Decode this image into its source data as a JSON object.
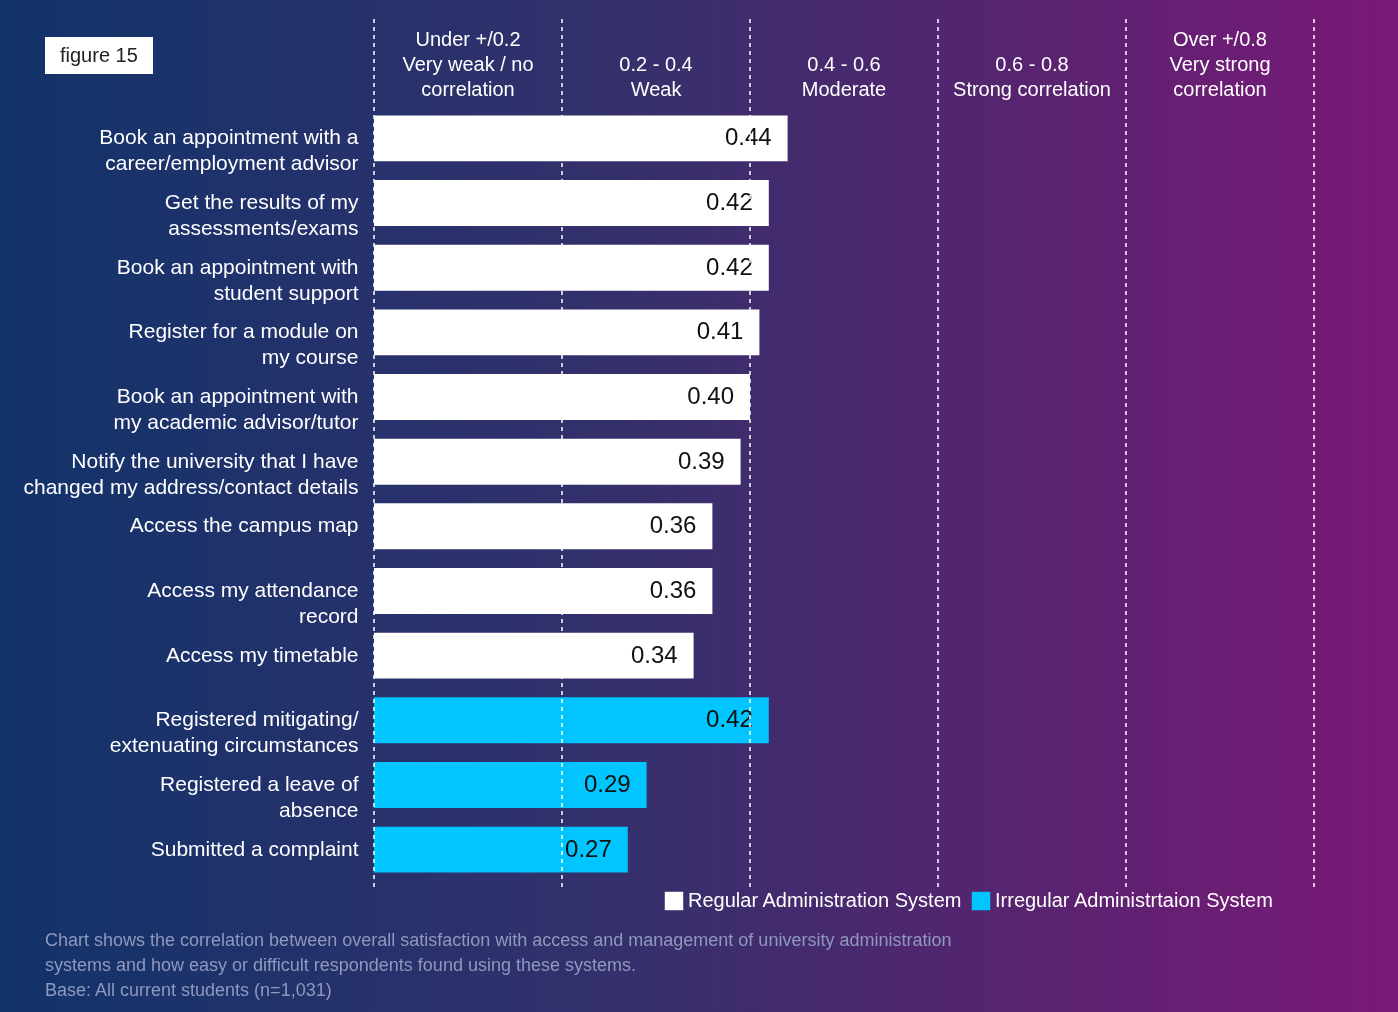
{
  "chart_data": {
    "type": "bar",
    "orientation": "horizontal",
    "title": "figure 15",
    "categories": [
      "Book an appointment with a career/employment advisor",
      "Get the results of my assessments/exams",
      "Book an appointment with student support",
      "Register for a module on my course",
      "Book an appointment with my academic advisor/tutor",
      "Notify the university that I have changed my address/contact details",
      "Access the campus map",
      "Access my attendance record",
      "Access my timetable",
      "Registered mitigating/extenuating circumstances",
      "Registered a leave of absence",
      "Submitted a complaint"
    ],
    "series": [
      {
        "name": "Regular Administration System",
        "color": "#ffffff",
        "values": [
          0.44,
          0.42,
          0.42,
          0.41,
          0.4,
          0.39,
          0.36,
          0.36,
          0.34,
          null,
          null,
          null
        ],
        "value_labels": [
          "0.44",
          "0.42",
          "0.42",
          "0.41",
          "0.40",
          "0.39",
          "0.36",
          "0.36",
          "0.34",
          null,
          null,
          null
        ]
      },
      {
        "name": "Irregular Administrtaion System",
        "color": "#00c5ff",
        "values": [
          null,
          null,
          null,
          null,
          null,
          null,
          null,
          null,
          null,
          0.42,
          0.29,
          0.27
        ],
        "value_labels": [
          null,
          null,
          null,
          null,
          null,
          null,
          null,
          null,
          null,
          "0.42",
          "0.29",
          "0.27"
        ]
      }
    ],
    "xlim": [
      0,
      1
    ],
    "tick_labels": "y",
    "legend": "bottom right",
    "grid": false,
    "ref_lines": [
      {
        "axis": "x",
        "value": 0,
        "color": "#ffffff",
        "line_style": "dashed"
      },
      {
        "axis": "x",
        "value": 0.2,
        "color": "#ffffff",
        "line_style": "dashed"
      },
      {
        "axis": "x",
        "value": 0.4,
        "color": "#ffffff",
        "line_style": "dashed"
      },
      {
        "axis": "x",
        "value": 0.6,
        "color": "#ffffff",
        "line_style": "dashed"
      },
      {
        "axis": "x",
        "value": 0.8,
        "color": "#ffffff",
        "line_style": "dashed"
      },
      {
        "axis": "x",
        "value": 1,
        "color": "#ffffff",
        "line_style": "dashed"
      }
    ],
    "annotations": [
      "Under +/0.2\nVery weak / no\ncorrelation",
      "0.2 - 0.4\nWeak",
      "0.4 - 0.6\nModerate",
      "0.6 - 0.8\nStrong correlation",
      "Over +/0.8\nVery strong\ncorrelation",
      "Chart shows the correlation between overall satisfaction with access and management of university administration systems and how easy or difficult respondents found using these systems.",
      "Base: All current students (n=1,031)"
    ]
  }
}
